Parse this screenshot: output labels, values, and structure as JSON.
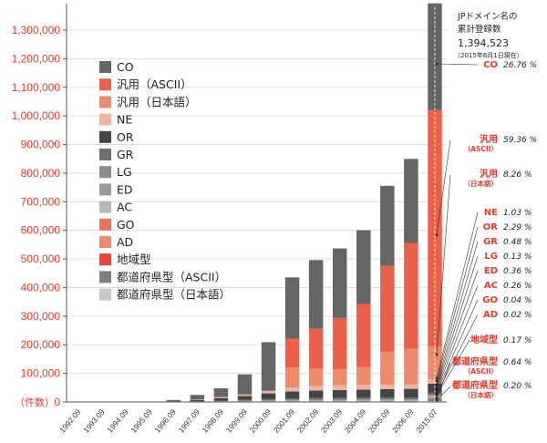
{
  "chart_data": {
    "type": "bar",
    "stacked": true,
    "ylim": [
      0,
      1400000
    ],
    "unit_label": "（件数）",
    "y_ticks": [
      0,
      100000,
      200000,
      300000,
      400000,
      500000,
      600000,
      700000,
      800000,
      900000,
      1000000,
      1100000,
      1200000,
      1300000
    ],
    "y_tick_labels": [
      "0",
      "100,000",
      "200,000",
      "300,000",
      "400,000",
      "500,000",
      "600,000",
      "700,000",
      "800,000",
      "900,000",
      "1,000,000",
      "1,100,000",
      "1,200,000",
      "1,300,000"
    ],
    "categories": [
      "1992.09",
      "1993.09",
      "1994.09",
      "1995.09",
      "1996.09",
      "1997.09",
      "1998.09",
      "1999.09",
      "2000.09",
      "2001.09",
      "2002.09",
      "2003.09",
      "2004.09",
      "2005.09",
      "2006.09",
      "2015.07"
    ],
    "series": [
      {
        "name": "都道府県型（日本語）",
        "color": "#c8c8c8",
        "values": [
          0,
          0,
          0,
          0,
          0,
          0,
          0,
          0,
          0,
          0,
          0,
          0,
          0,
          0,
          0,
          2800
        ]
      },
      {
        "name": "都道府県型（ASCII）",
        "color": "#7f7f7f",
        "values": [
          0,
          0,
          0,
          0,
          0,
          0,
          0,
          0,
          0,
          0,
          0,
          0,
          0,
          0,
          0,
          8900
        ]
      },
      {
        "name": "地域型",
        "color": "#e8452c",
        "values": [
          0,
          0,
          0,
          0,
          0,
          0,
          0,
          0,
          0,
          0,
          0,
          0,
          0,
          0,
          0,
          2400
        ]
      },
      {
        "name": "AD",
        "color": "#f08a6d",
        "values": [
          0,
          0,
          0,
          0,
          0,
          0,
          0,
          0,
          0,
          0,
          0,
          0,
          0,
          0,
          0,
          300
        ]
      },
      {
        "name": "GO",
        "color": "#e8735a",
        "values": [
          0,
          0,
          0,
          0,
          0,
          100,
          200,
          300,
          400,
          500,
          500,
          500,
          600,
          600,
          600,
          600
        ]
      },
      {
        "name": "AC",
        "color": "#b8b8b8",
        "values": [
          0,
          0,
          0,
          0,
          0,
          1200,
          1800,
          2200,
          2600,
          3000,
          3200,
          3300,
          3400,
          3500,
          3600,
          3600
        ]
      },
      {
        "name": "ED",
        "color": "#9a9a9a",
        "values": [
          0,
          0,
          0,
          0,
          0,
          300,
          700,
          1500,
          2500,
          3500,
          4200,
          4600,
          4900,
          5000,
          5000,
          5000
        ]
      },
      {
        "name": "LG",
        "color": "#8c8c8c",
        "values": [
          0,
          0,
          0,
          0,
          0,
          0,
          0,
          0,
          0,
          0,
          0,
          0,
          0,
          0,
          0,
          1800
        ]
      },
      {
        "name": "GR",
        "color": "#6f6f6f",
        "values": [
          0,
          0,
          0,
          0,
          0,
          1000,
          2000,
          3500,
          4500,
          5500,
          6000,
          6300,
          6500,
          6600,
          6700,
          6700
        ]
      },
      {
        "name": "OR",
        "color": "#444444",
        "values": [
          0,
          0,
          0,
          0,
          2000,
          5000,
          9000,
          14000,
          20000,
          24000,
          26000,
          27000,
          28000,
          29000,
          30000,
          32000
        ]
      },
      {
        "name": "NE",
        "color": "#f3b29f",
        "values": [
          0,
          0,
          0,
          0,
          0,
          2000,
          4000,
          5000,
          9000,
          14000,
          16000,
          17000,
          17000,
          16000,
          15000,
          14400
        ]
      },
      {
        "name": "汎用（日本語）",
        "color": "#ee8a6c",
        "values": [
          0,
          0,
          0,
          0,
          0,
          0,
          0,
          0,
          0,
          70000,
          60000,
          55000,
          62000,
          115000,
          125000,
          115000
        ]
      },
      {
        "name": "汎用（ASCII）",
        "color": "#ea6049",
        "values": [
          0,
          0,
          0,
          0,
          0,
          0,
          0,
          0,
          0,
          100000,
          140000,
          180000,
          220000,
          300000,
          370000,
          827000
        ]
      },
      {
        "name": "CO",
        "color": "#656565",
        "values": [
          0,
          0,
          800,
          1200,
          5000,
          15000,
          30000,
          70000,
          170000,
          215000,
          240000,
          243000,
          258000,
          280000,
          294000,
          373000
        ]
      }
    ],
    "legend_order": [
      "CO",
      "汎用（ASCII）",
      "汎用（日本語）",
      "NE",
      "OR",
      "GR",
      "LG",
      "ED",
      "AC",
      "GO",
      "AD",
      "地域型",
      "都道府県型（ASCII）",
      "都道府県型（日本語）"
    ],
    "legend_position": "left",
    "annotation": {
      "lines": [
        "JPドメイン名の",
        "累計登録数",
        "1,394,523"
      ],
      "note": "（2015年6月1日現在）"
    },
    "shares": [
      {
        "label": "CO",
        "sub": "",
        "pct": "26.76 %"
      },
      {
        "label": "汎用",
        "sub": "（ASCII）",
        "pct": "59.36 %"
      },
      {
        "label": "汎用",
        "sub": "（日本語）",
        "pct": "8.26 %"
      },
      {
        "label": "NE",
        "sub": "",
        "pct": "1.03 %"
      },
      {
        "label": "OR",
        "sub": "",
        "pct": "2.29 %"
      },
      {
        "label": "GR",
        "sub": "",
        "pct": "0.48 %"
      },
      {
        "label": "LG",
        "sub": "",
        "pct": "0.13 %"
      },
      {
        "label": "ED",
        "sub": "",
        "pct": "0.36 %"
      },
      {
        "label": "AC",
        "sub": "",
        "pct": "0.26 %"
      },
      {
        "label": "GO",
        "sub": "",
        "pct": "0.04 %"
      },
      {
        "label": "AD",
        "sub": "",
        "pct": "0.02 %"
      },
      {
        "label": "地域型",
        "sub": "",
        "pct": "0.17 %"
      },
      {
        "label": "都道府県型",
        "sub": "（ASCII）",
        "pct": "0.64 %"
      },
      {
        "label": "都道府県型",
        "sub": "（日本語）",
        "pct": "0.20 %"
      }
    ]
  }
}
